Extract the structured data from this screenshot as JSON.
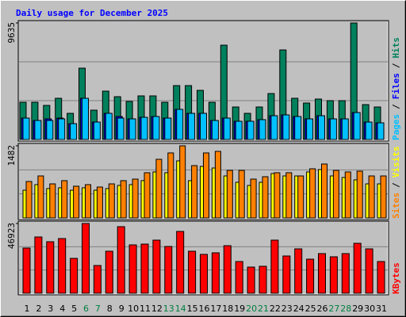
{
  "chart_data": {
    "type": "bar",
    "title": "Daily usage for December 2025",
    "categories": [
      "1",
      "2",
      "3",
      "4",
      "5",
      "6",
      "7",
      "8",
      "9",
      "10",
      "11",
      "12",
      "13",
      "14",
      "15",
      "16",
      "17",
      "18",
      "19",
      "20",
      "21",
      "22",
      "23",
      "24",
      "25",
      "26",
      "27",
      "28",
      "29",
      "30",
      "31"
    ],
    "highlight_categories": [
      "6",
      "7",
      "13",
      "14",
      "20",
      "21",
      "27",
      "28"
    ],
    "highlight_color": "#008040",
    "legend_separator": "/",
    "panels": [
      {
        "ylim": [
          0,
          9635
        ],
        "yticks": [
          9635
        ],
        "series": [
          {
            "name": "Pages",
            "color": "#00c0ff",
            "values": [
              1770,
              1573,
              1573,
              1704,
              1311,
              3408,
              1442,
              2163,
              1770,
              1704,
              1835,
              1901,
              1770,
              2491,
              2163,
              2163,
              1573,
              1770,
              1507,
              1507,
              1639,
              1966,
              2032,
              1901,
              1704,
              1966,
              1704,
              1704,
              2228,
              1442,
              1376
            ]
          },
          {
            "name": "Files",
            "color": "#0000ff",
            "values": [
              1770,
              1573,
              1704,
              1770,
              1311,
              3408,
              1442,
              2163,
              1901,
              1704,
              1835,
              1901,
              1770,
              2491,
              2163,
              2163,
              1573,
              1770,
              1507,
              1507,
              1639,
              1966,
              2032,
              1901,
              1704,
              1966,
              1704,
              1704,
              2228,
              1442,
              1376
            ]
          },
          {
            "name": "Hits",
            "color": "#00805c",
            "values": [
              3080,
              3080,
              2818,
              3408,
              2163,
              5899,
              2425,
              3998,
              3539,
              3146,
              3605,
              3605,
              3080,
              4457,
              4457,
              4063,
              3080,
              7799,
              2687,
              2163,
              2687,
              3801,
              7406,
              3408,
              3015,
              3343,
              3211,
              3211,
              9635,
              2884,
              2687
            ]
          }
        ]
      },
      {
        "ylim": [
          0,
          1482
        ],
        "yticks": [
          1482
        ],
        "series": [
          {
            "name": "Sites",
            "color": "#ff8000",
            "values": [
              749,
              863,
              700,
              766,
              652,
              684,
              635,
              700,
              766,
              798,
              929,
              1205,
              1336,
              1482,
              1075,
              1336,
              1368,
              977,
              977,
              798,
              847,
              929,
              929,
              863,
              1010,
              1108,
              977,
              945,
              961,
              863,
              863
            ]
          },
          {
            "name": "Visits",
            "color": "#ffff00",
            "values": [
              570,
              684,
              603,
              619,
              570,
              619,
              570,
              603,
              668,
              684,
              766,
              945,
              929,
              1173,
              766,
              1059,
              1026,
              863,
              733,
              668,
              733,
              912,
              863,
              863,
              945,
              994,
              863,
              831,
              782,
              700,
              700
            ]
          }
        ]
      },
      {
        "ylim": [
          0,
          46923
        ],
        "yticks": [
          46923
        ],
        "series": [
          {
            "name": "KBytes",
            "color": "#ff0000",
            "values": [
              30392,
              37857,
              34658,
              36791,
              23461,
              46923,
              18662,
              28260,
              44789,
              32525,
              33058,
              35724,
              31459,
              41590,
              28260,
              26127,
              27193,
              31992,
              21328,
              17596,
              18129,
              35724,
              25060,
              29859,
              22928,
              26660,
              24527,
              26660,
              33592,
              29859,
              21328
            ]
          }
        ]
      }
    ]
  }
}
